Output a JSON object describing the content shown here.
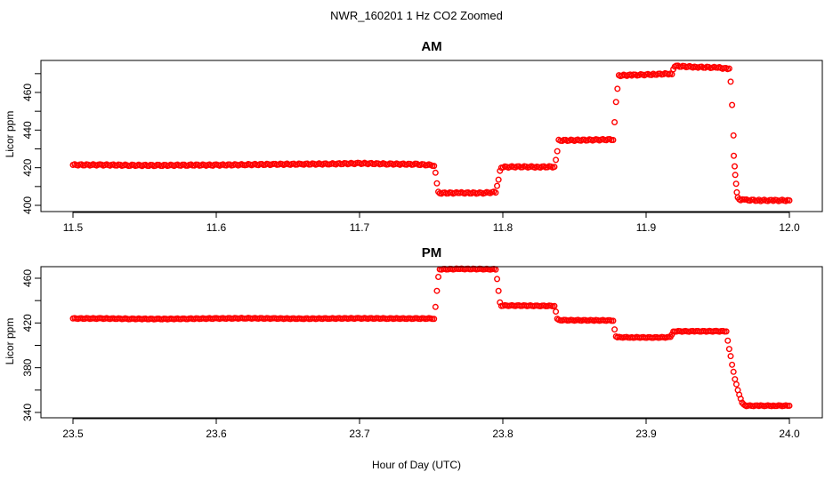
{
  "figure_title": "NWR_160201  1 Hz CO2 Zoomed",
  "xlabel": "Hour of Day (UTC)",
  "colors": {
    "points": "#ff0000",
    "axis": "#000000",
    "background": "#ffffff"
  },
  "chart_data": [
    {
      "type": "scatter",
      "title": "AM",
      "ylabel": "Licor ppm",
      "xlim": [
        11.5,
        12.0
      ],
      "ylim": [
        400,
        475
      ],
      "x_ticks": [
        11.5,
        11.6,
        11.7,
        11.8,
        11.9,
        12.0
      ],
      "x_tick_labels": [
        "11.5",
        "11.6",
        "11.7",
        "11.8",
        "11.9",
        "12.0"
      ],
      "y_ticks": [
        400,
        420,
        440,
        460
      ],
      "y_tick_labels": [
        "400",
        "420",
        "440",
        "460"
      ],
      "grid": false,
      "marker": "open-circle",
      "series": [
        {
          "x": [
            11.5,
            11.52,
            11.54,
            11.56,
            11.58,
            11.6,
            11.62,
            11.64,
            11.66,
            11.68,
            11.7,
            11.72,
            11.74,
            11.752,
            11.753,
            11.754,
            11.755,
            11.756,
            11.77,
            11.785,
            11.795,
            11.796,
            11.797,
            11.798,
            11.799,
            11.81,
            11.825,
            11.836,
            11.837,
            11.838,
            11.839,
            11.85,
            11.865,
            11.877,
            11.878,
            11.879,
            11.88,
            11.881,
            11.89,
            11.905,
            11.918,
            11.919,
            11.92,
            11.921,
            11.935,
            11.95,
            11.958,
            11.959,
            11.96,
            11.961,
            11.9612,
            11.9618,
            11.9622,
            11.9628,
            11.9633,
            11.964,
            11.966,
            11.97,
            11.98,
            11.99,
            12.0
          ],
          "y": [
            421.5,
            421.5,
            421.3,
            421.2,
            421.4,
            421.4,
            421.6,
            421.8,
            421.9,
            422.0,
            422.3,
            422.0,
            421.8,
            421.3,
            417,
            412,
            407,
            406.5,
            406.6,
            406.5,
            407,
            410,
            414,
            418,
            420.3,
            420.5,
            420.4,
            420.5,
            424,
            429,
            434.5,
            434.6,
            434.8,
            435,
            444,
            455,
            462,
            469,
            469.2,
            469.6,
            470,
            472,
            474,
            474,
            473.5,
            473.2,
            472.5,
            466,
            453,
            437.5,
            426,
            421,
            416,
            411.5,
            407,
            404,
            403,
            402.8,
            402.6,
            402.6,
            402.6
          ]
        }
      ]
    },
    {
      "type": "scatter",
      "title": "PM",
      "ylabel": "Licor ppm",
      "xlim": [
        23.5,
        24.0
      ],
      "ylim": [
        340,
        474
      ],
      "x_ticks": [
        23.5,
        23.6,
        23.7,
        23.8,
        23.9,
        24.0
      ],
      "x_tick_labels": [
        "23.5",
        "23.6",
        "23.7",
        "23.8",
        "23.9",
        "24.0"
      ],
      "y_ticks": [
        340,
        380,
        420,
        460
      ],
      "y_tick_labels": [
        "340",
        "380",
        "420",
        "460"
      ],
      "grid": false,
      "marker": "open-circle",
      "series": [
        {
          "x": [
            23.5,
            23.52,
            23.54,
            23.56,
            23.58,
            23.6,
            23.62,
            23.64,
            23.66,
            23.68,
            23.7,
            23.72,
            23.74,
            23.752,
            23.753,
            23.754,
            23.755,
            23.756,
            23.77,
            23.785,
            23.795,
            23.796,
            23.797,
            23.798,
            23.799,
            23.81,
            23.825,
            23.836,
            23.837,
            23.838,
            23.839,
            23.85,
            23.865,
            23.877,
            23.878,
            23.879,
            23.88,
            23.89,
            23.905,
            23.917,
            23.918,
            23.919,
            23.92,
            23.935,
            23.95,
            23.956,
            23.957,
            23.958,
            23.959,
            23.96,
            23.961,
            23.962,
            23.963,
            23.964,
            23.965,
            23.966,
            23.967,
            23.968,
            23.97,
            23.98,
            23.99,
            24.0
          ],
          "y": [
            424,
            424,
            423.7,
            423.5,
            423.8,
            424,
            424.2,
            424,
            423.8,
            424,
            424.1,
            424,
            423.9,
            424,
            434,
            449,
            461,
            468,
            468.3,
            468.2,
            468,
            459,
            449,
            438,
            435.5,
            435.5,
            435.3,
            435.2,
            430,
            424,
            422.5,
            422.4,
            422.3,
            422.2,
            414,
            408,
            407.2,
            407.1,
            407,
            407.2,
            410,
            412,
            412.5,
            412.5,
            412.6,
            412.5,
            404,
            397,
            390,
            383,
            376,
            370,
            365,
            360,
            356,
            352,
            349,
            347,
            346,
            346,
            346,
            346
          ]
        }
      ]
    }
  ]
}
